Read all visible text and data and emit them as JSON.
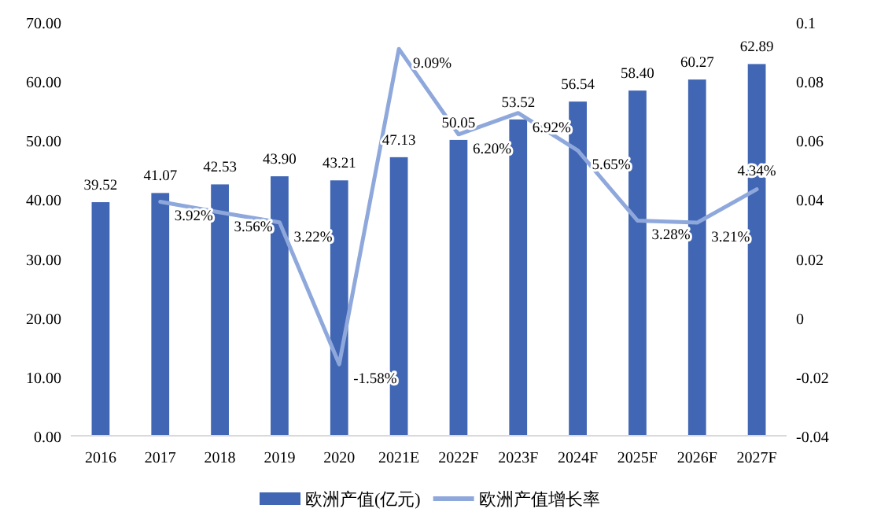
{
  "chart_data": {
    "type": "bar",
    "categories": [
      "2016",
      "2017",
      "2018",
      "2019",
      "2020",
      "2021E",
      "2022F",
      "2023F",
      "2024F",
      "2025F",
      "2026F",
      "2027F"
    ],
    "series": [
      {
        "name": "欧洲产值(亿元)",
        "color": "#4066b4",
        "values": [
          39.52,
          41.07,
          42.53,
          43.9,
          43.21,
          47.13,
          50.05,
          53.52,
          56.54,
          58.4,
          60.27,
          62.89
        ],
        "value_labels": [
          "39.52",
          "41.07",
          "42.53",
          "43.90",
          "43.21",
          "47.13",
          "50.05",
          "53.52",
          "56.54",
          "58.40",
          "60.27",
          "62.89"
        ]
      },
      {
        "name": "欧洲产值增长率",
        "type": "line",
        "axis": "y2",
        "color": "#8fa8dc",
        "values": [
          null,
          0.0392,
          0.0356,
          0.0322,
          -0.0158,
          0.0909,
          0.062,
          0.0692,
          0.0565,
          0.0328,
          0.0321,
          0.0434
        ],
        "value_labels": [
          null,
          "3.92%",
          "3.56%",
          "3.22%",
          "-1.58%",
          "9.09%",
          "6.20%",
          "6.92%",
          "5.65%",
          "3.28%",
          "3.21%",
          "4.34%"
        ]
      }
    ],
    "ylim": [
      0,
      70
    ],
    "yticks": [
      {
        "value": 0,
        "label": "0.00"
      },
      {
        "value": 10,
        "label": "10.00"
      },
      {
        "value": 20,
        "label": "20.00"
      },
      {
        "value": 30,
        "label": "30.00"
      },
      {
        "value": 40,
        "label": "40.00"
      },
      {
        "value": 50,
        "label": "50.00"
      },
      {
        "value": 60,
        "label": "60.00"
      },
      {
        "value": 70,
        "label": "70.00"
      }
    ],
    "y2lim": [
      -0.04,
      0.1
    ],
    "y2ticks": [
      -0.04,
      -0.02,
      0,
      0.02,
      0.04,
      0.06,
      0.08,
      0.1
    ],
    "grid": false,
    "legend": "bottom",
    "marker": "none",
    "line_style": "solid"
  }
}
